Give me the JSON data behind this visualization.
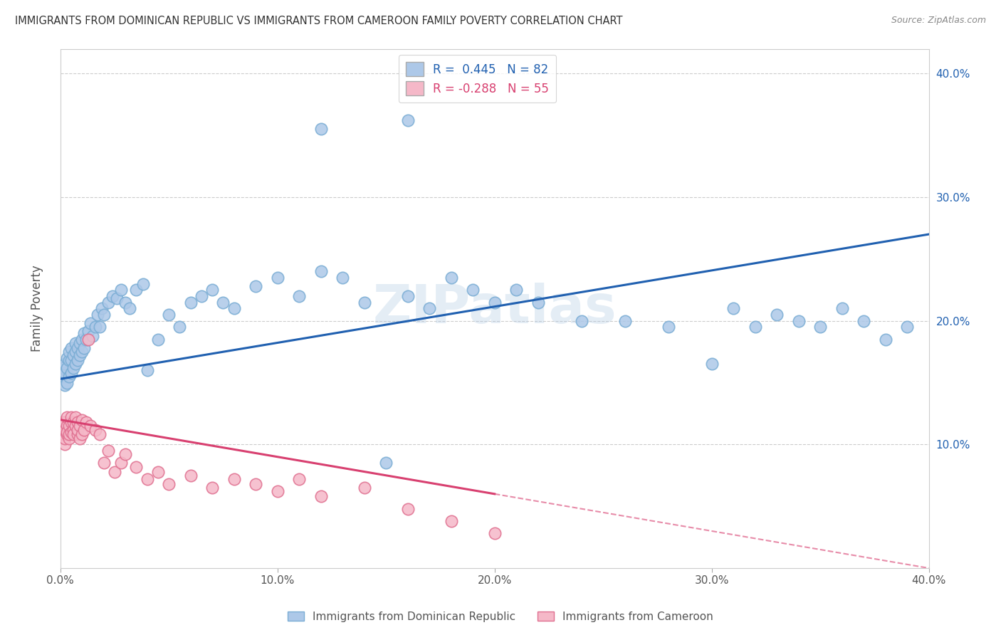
{
  "title": "IMMIGRANTS FROM DOMINICAN REPUBLIC VS IMMIGRANTS FROM CAMEROON FAMILY POVERTY CORRELATION CHART",
  "source": "Source: ZipAtlas.com",
  "ylabel": "Family Poverty",
  "series1_label": "Immigrants from Dominican Republic",
  "series2_label": "Immigrants from Cameroon",
  "series1_color": "#adc8e8",
  "series1_edge_color": "#7aadd4",
  "series2_color": "#f5b8c8",
  "series2_edge_color": "#e07090",
  "trend1_color": "#2060b0",
  "trend2_color": "#d84070",
  "R1": 0.445,
  "N1": 82,
  "R2": -0.288,
  "N2": 55,
  "legend_R1_color": "#2060b0",
  "legend_R2_color": "#d84070",
  "legend_box1_color": "#adc8e8",
  "legend_box2_color": "#f5b8c8",
  "watermark": "ZIPatlas",
  "background_color": "#ffffff",
  "grid_color": "#cccccc",
  "xlim": [
    0.0,
    0.4
  ],
  "ylim": [
    0.0,
    0.42
  ],
  "series1_x": [
    0.001,
    0.001,
    0.002,
    0.002,
    0.002,
    0.003,
    0.003,
    0.003,
    0.004,
    0.004,
    0.004,
    0.005,
    0.005,
    0.005,
    0.006,
    0.006,
    0.007,
    0.007,
    0.007,
    0.008,
    0.008,
    0.009,
    0.009,
    0.01,
    0.01,
    0.011,
    0.011,
    0.012,
    0.013,
    0.014,
    0.015,
    0.016,
    0.017,
    0.018,
    0.019,
    0.02,
    0.022,
    0.024,
    0.026,
    0.028,
    0.03,
    0.032,
    0.035,
    0.038,
    0.04,
    0.045,
    0.05,
    0.055,
    0.06,
    0.065,
    0.07,
    0.075,
    0.08,
    0.09,
    0.1,
    0.11,
    0.12,
    0.13,
    0.14,
    0.15,
    0.16,
    0.17,
    0.18,
    0.19,
    0.2,
    0.21,
    0.22,
    0.24,
    0.26,
    0.28,
    0.3,
    0.31,
    0.32,
    0.33,
    0.34,
    0.35,
    0.36,
    0.37,
    0.38,
    0.39,
    0.12,
    0.16
  ],
  "series1_y": [
    0.155,
    0.162,
    0.148,
    0.158,
    0.165,
    0.15,
    0.162,
    0.17,
    0.155,
    0.168,
    0.175,
    0.158,
    0.168,
    0.178,
    0.162,
    0.172,
    0.165,
    0.175,
    0.182,
    0.168,
    0.178,
    0.172,
    0.182,
    0.175,
    0.185,
    0.178,
    0.19,
    0.185,
    0.192,
    0.198,
    0.188,
    0.195,
    0.205,
    0.195,
    0.21,
    0.205,
    0.215,
    0.22,
    0.218,
    0.225,
    0.215,
    0.21,
    0.225,
    0.23,
    0.16,
    0.185,
    0.205,
    0.195,
    0.215,
    0.22,
    0.225,
    0.215,
    0.21,
    0.228,
    0.235,
    0.22,
    0.24,
    0.235,
    0.215,
    0.085,
    0.22,
    0.21,
    0.235,
    0.225,
    0.215,
    0.225,
    0.215,
    0.2,
    0.2,
    0.195,
    0.165,
    0.21,
    0.195,
    0.205,
    0.2,
    0.195,
    0.21,
    0.2,
    0.185,
    0.195,
    0.355,
    0.362
  ],
  "series2_x": [
    0.001,
    0.001,
    0.001,
    0.002,
    0.002,
    0.002,
    0.002,
    0.003,
    0.003,
    0.003,
    0.003,
    0.004,
    0.004,
    0.004,
    0.005,
    0.005,
    0.005,
    0.006,
    0.006,
    0.006,
    0.007,
    0.007,
    0.008,
    0.008,
    0.008,
    0.009,
    0.009,
    0.01,
    0.01,
    0.011,
    0.012,
    0.013,
    0.014,
    0.016,
    0.018,
    0.02,
    0.022,
    0.025,
    0.028,
    0.03,
    0.035,
    0.04,
    0.045,
    0.05,
    0.06,
    0.07,
    0.08,
    0.09,
    0.1,
    0.11,
    0.12,
    0.14,
    0.16,
    0.18,
    0.2
  ],
  "series2_y": [
    0.115,
    0.108,
    0.118,
    0.1,
    0.112,
    0.105,
    0.118,
    0.108,
    0.115,
    0.122,
    0.11,
    0.105,
    0.115,
    0.108,
    0.118,
    0.11,
    0.122,
    0.112,
    0.108,
    0.118,
    0.115,
    0.122,
    0.108,
    0.118,
    0.112,
    0.105,
    0.115,
    0.108,
    0.12,
    0.112,
    0.118,
    0.185,
    0.115,
    0.112,
    0.108,
    0.085,
    0.095,
    0.078,
    0.085,
    0.092,
    0.082,
    0.072,
    0.078,
    0.068,
    0.075,
    0.065,
    0.072,
    0.068,
    0.062,
    0.072,
    0.058,
    0.065,
    0.048,
    0.038,
    0.028
  ],
  "trend1_x0": 0.0,
  "trend1_y0": 0.153,
  "trend1_x1": 0.4,
  "trend1_y1": 0.27,
  "trend2_solid_x0": 0.0,
  "trend2_solid_y0": 0.12,
  "trend2_solid_x1": 0.2,
  "trend2_solid_y1": 0.06,
  "trend2_dash_x1": 0.4,
  "trend2_dash_y1": 0.0
}
